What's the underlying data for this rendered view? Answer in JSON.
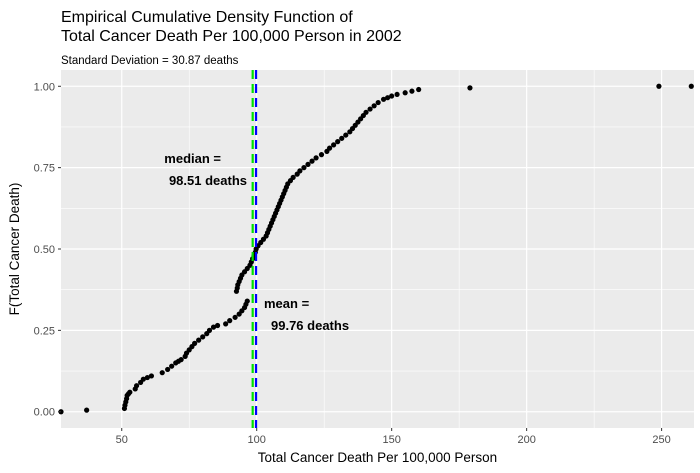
{
  "chart_data": {
    "type": "scatter",
    "title_line1": "Empirical Cumulative Density Function of",
    "title_line2": "Total Cancer Death Per 100,000 Person in 2002",
    "subtitle": "Standard Deviation = 30.87 deaths",
    "xlabel": "Total Cancer Death Per 100,000 Person",
    "ylabel": "F(Total Cancer Death)",
    "xlim": [
      27.5,
      262
    ],
    "ylim": [
      -0.05,
      1.05
    ],
    "x_ticks": [
      50,
      100,
      150,
      200,
      250
    ],
    "y_ticks": [
      0,
      0.25,
      0.5,
      0.75,
      1
    ],
    "y_tick_labels": [
      "0.00",
      "0.25",
      "0.50",
      "0.75",
      "1.00"
    ],
    "grid": true,
    "background": "#ebebeb",
    "grid_color": "#ffffff",
    "point_color": "#000000",
    "vlines": [
      {
        "x": 98.51,
        "color": "#00e000",
        "dash": true
      },
      {
        "x": 99.76,
        "color": "#0000ff",
        "dash": true
      }
    ],
    "annotations": {
      "median_line1": "median =",
      "median_line2": "98.51 deaths",
      "mean_line1": "mean =",
      "mean_line2": "99.76 deaths"
    },
    "points": [
      [
        27.5,
        0.0
      ],
      [
        37,
        0.005
      ],
      [
        51,
        0.01
      ],
      [
        51.2,
        0.02
      ],
      [
        51.5,
        0.03
      ],
      [
        51.8,
        0.04
      ],
      [
        52,
        0.05
      ],
      [
        52.5,
        0.055
      ],
      [
        53,
        0.06
      ],
      [
        55,
        0.07
      ],
      [
        55.5,
        0.08
      ],
      [
        57,
        0.09
      ],
      [
        58,
        0.1
      ],
      [
        59.5,
        0.105
      ],
      [
        61,
        0.11
      ],
      [
        65,
        0.12
      ],
      [
        67,
        0.13
      ],
      [
        68.5,
        0.14
      ],
      [
        70,
        0.15
      ],
      [
        71,
        0.155
      ],
      [
        72,
        0.16
      ],
      [
        73.5,
        0.17
      ],
      [
        74,
        0.18
      ],
      [
        75,
        0.19
      ],
      [
        76,
        0.2
      ],
      [
        77,
        0.21
      ],
      [
        78.5,
        0.22
      ],
      [
        80,
        0.23
      ],
      [
        81.5,
        0.24
      ],
      [
        82.5,
        0.25
      ],
      [
        84,
        0.26
      ],
      [
        85.5,
        0.265
      ],
      [
        88.5,
        0.27
      ],
      [
        90,
        0.28
      ],
      [
        92,
        0.29
      ],
      [
        93.5,
        0.3
      ],
      [
        94.5,
        0.31
      ],
      [
        95.5,
        0.32
      ],
      [
        96,
        0.33
      ],
      [
        96.5,
        0.34
      ],
      [
        92.5,
        0.37
      ],
      [
        92.8,
        0.38
      ],
      [
        93,
        0.39
      ],
      [
        93.5,
        0.4
      ],
      [
        94,
        0.41
      ],
      [
        94.5,
        0.42
      ],
      [
        95.5,
        0.43
      ],
      [
        96.5,
        0.44
      ],
      [
        97.5,
        0.45
      ],
      [
        98,
        0.46
      ],
      [
        98.5,
        0.47
      ],
      [
        99,
        0.48
      ],
      [
        99.5,
        0.49
      ],
      [
        99.8,
        0.5
      ],
      [
        100.5,
        0.51
      ],
      [
        101.5,
        0.52
      ],
      [
        102.5,
        0.53
      ],
      [
        103.5,
        0.54
      ],
      [
        104,
        0.55
      ],
      [
        104.5,
        0.56
      ],
      [
        105,
        0.57
      ],
      [
        105.5,
        0.58
      ],
      [
        106,
        0.59
      ],
      [
        106.5,
        0.6
      ],
      [
        107,
        0.61
      ],
      [
        107.5,
        0.62
      ],
      [
        108,
        0.63
      ],
      [
        108.5,
        0.64
      ],
      [
        109,
        0.65
      ],
      [
        109.5,
        0.66
      ],
      [
        110,
        0.67
      ],
      [
        110.5,
        0.68
      ],
      [
        111,
        0.69
      ],
      [
        111.5,
        0.7
      ],
      [
        112.5,
        0.71
      ],
      [
        113.5,
        0.72
      ],
      [
        115,
        0.73
      ],
      [
        116,
        0.74
      ],
      [
        117.5,
        0.75
      ],
      [
        119,
        0.76
      ],
      [
        120.5,
        0.77
      ],
      [
        122,
        0.78
      ],
      [
        124,
        0.79
      ],
      [
        126,
        0.8
      ],
      [
        127,
        0.81
      ],
      [
        128.5,
        0.82
      ],
      [
        130,
        0.83
      ],
      [
        131.5,
        0.84
      ],
      [
        133,
        0.85
      ],
      [
        134.5,
        0.86
      ],
      [
        135.5,
        0.87
      ],
      [
        136.5,
        0.88
      ],
      [
        137.5,
        0.89
      ],
      [
        138.5,
        0.9
      ],
      [
        139.5,
        0.91
      ],
      [
        140.5,
        0.92
      ],
      [
        142,
        0.93
      ],
      [
        143.5,
        0.94
      ],
      [
        145,
        0.95
      ],
      [
        147,
        0.96
      ],
      [
        148.5,
        0.965
      ],
      [
        150,
        0.97
      ],
      [
        152,
        0.975
      ],
      [
        155,
        0.98
      ],
      [
        157.5,
        0.985
      ],
      [
        160,
        0.99
      ],
      [
        179,
        0.995
      ],
      [
        249,
        1.0
      ],
      [
        261,
        1.0
      ]
    ]
  }
}
